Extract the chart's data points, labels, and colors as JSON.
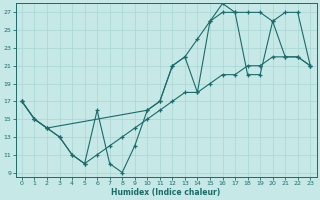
{
  "xlabel": "Humidex (Indice chaleur)",
  "xlim": [
    -0.5,
    23.5
  ],
  "ylim": [
    8.5,
    28
  ],
  "xticks": [
    0,
    1,
    2,
    3,
    4,
    5,
    6,
    7,
    8,
    9,
    10,
    11,
    12,
    13,
    14,
    15,
    16,
    17,
    18,
    19,
    20,
    21,
    22,
    23
  ],
  "yticks": [
    9,
    11,
    13,
    15,
    17,
    19,
    21,
    23,
    25,
    27
  ],
  "bg_color": "#c6e8e6",
  "grid_color": "#a8d4d2",
  "line_color": "#1a6b6b",
  "line1_x": [
    0,
    1,
    2,
    3,
    4,
    5,
    6,
    7,
    8,
    9,
    10,
    11,
    12,
    13,
    14,
    15,
    16,
    17,
    18,
    19,
    20,
    21,
    22,
    23
  ],
  "line1_y": [
    17,
    15,
    14,
    13,
    11,
    10,
    16,
    10,
    9,
    12,
    16,
    17,
    21,
    22,
    18,
    26,
    27,
    27,
    20,
    20,
    26,
    22,
    22,
    21
  ],
  "line2_x": [
    0,
    1,
    2,
    10,
    11,
    12,
    13,
    14,
    15,
    16,
    17,
    18,
    19,
    20,
    21,
    22,
    23
  ],
  "line2_y": [
    17,
    15,
    14,
    16,
    17,
    21,
    22,
    24,
    26,
    28,
    27,
    27,
    27,
    26,
    27,
    27,
    21
  ],
  "line3_x": [
    0,
    1,
    2,
    3,
    4,
    5,
    6,
    7,
    8,
    9,
    10,
    11,
    12,
    13,
    14,
    15,
    16,
    17,
    18,
    19,
    20,
    21,
    22,
    23
  ],
  "line3_y": [
    17,
    15,
    14,
    13,
    11,
    10,
    11,
    12,
    13,
    14,
    15,
    16,
    17,
    18,
    18,
    19,
    20,
    20,
    21,
    21,
    22,
    22,
    22,
    21
  ]
}
